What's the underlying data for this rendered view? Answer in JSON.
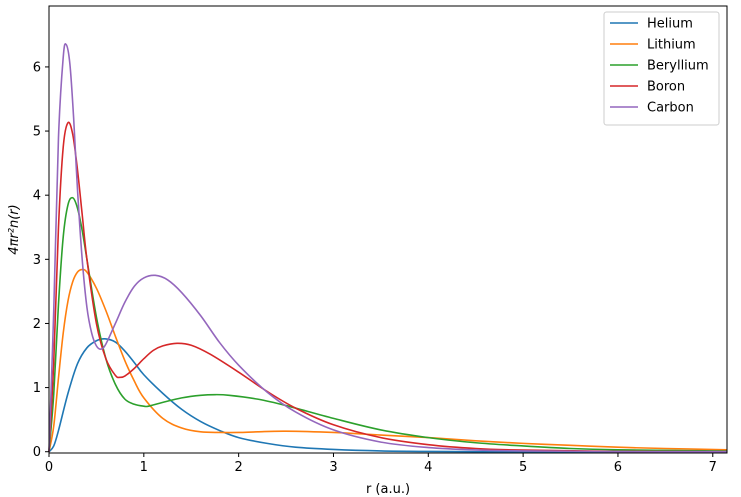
{
  "chart_data": {
    "type": "line",
    "title": "",
    "xlabel": "r (a.u.)",
    "ylabel": "4πr²n(r)",
    "xlim": [
      0,
      7.15
    ],
    "ylim": [
      -0.02,
      6.95
    ],
    "xticks": [
      0,
      1,
      2,
      3,
      4,
      5,
      6,
      7
    ],
    "yticks": [
      0,
      1,
      2,
      3,
      4,
      5,
      6
    ],
    "grid": false,
    "legend_position": "top-right",
    "series": [
      {
        "name": "Helium",
        "color": "#1f77b4",
        "x": [
          0,
          0.05,
          0.1,
          0.2,
          0.3,
          0.4,
          0.5,
          0.59,
          0.7,
          0.8,
          0.9,
          1.0,
          1.2,
          1.4,
          1.6,
          1.8,
          2.0,
          2.3,
          2.6,
          3.0,
          3.5,
          4.0,
          4.5,
          5.0,
          6.0,
          7.15
        ],
        "y": [
          0,
          0.09,
          0.33,
          0.91,
          1.37,
          1.62,
          1.73,
          1.76,
          1.71,
          1.57,
          1.39,
          1.2,
          0.91,
          0.66,
          0.47,
          0.33,
          0.22,
          0.13,
          0.07,
          0.035,
          0.012,
          0.004,
          0.001,
          0,
          0,
          0
        ]
      },
      {
        "name": "Lithium",
        "color": "#ff7f0e",
        "x": [
          0,
          0.05,
          0.1,
          0.15,
          0.2,
          0.25,
          0.3,
          0.35,
          0.4,
          0.5,
          0.6,
          0.7,
          0.8,
          0.9,
          1.0,
          1.2,
          1.4,
          1.6,
          1.8,
          2.0,
          2.2,
          2.5,
          3.0,
          3.5,
          4.0,
          4.5,
          5.0,
          5.5,
          6.0,
          6.5,
          7.15
        ],
        "y": [
          0,
          0.4,
          1.15,
          1.85,
          2.35,
          2.65,
          2.8,
          2.84,
          2.8,
          2.55,
          2.2,
          1.8,
          1.42,
          1.1,
          0.84,
          0.52,
          0.37,
          0.31,
          0.3,
          0.3,
          0.31,
          0.32,
          0.3,
          0.26,
          0.22,
          0.17,
          0.13,
          0.1,
          0.07,
          0.05,
          0.03
        ]
      },
      {
        "name": "Beryllium",
        "color": "#2ca02c",
        "x": [
          0,
          0.05,
          0.1,
          0.15,
          0.2,
          0.25,
          0.3,
          0.35,
          0.4,
          0.5,
          0.6,
          0.7,
          0.8,
          0.9,
          1.0,
          1.05,
          1.2,
          1.4,
          1.6,
          1.75,
          1.9,
          2.2,
          2.5,
          3.0,
          3.5,
          4.0,
          4.5,
          5.0,
          5.5,
          6.0,
          7.15
        ],
        "y": [
          0,
          0.9,
          2.3,
          3.35,
          3.85,
          3.96,
          3.8,
          3.45,
          3.0,
          2.1,
          1.45,
          1.05,
          0.82,
          0.74,
          0.71,
          0.71,
          0.77,
          0.84,
          0.88,
          0.89,
          0.88,
          0.82,
          0.72,
          0.52,
          0.34,
          0.22,
          0.14,
          0.09,
          0.05,
          0.03,
          0.01
        ]
      },
      {
        "name": "Boron",
        "color": "#d62728",
        "x": [
          0,
          0.05,
          0.1,
          0.15,
          0.2,
          0.25,
          0.3,
          0.35,
          0.4,
          0.5,
          0.6,
          0.7,
          0.75,
          0.8,
          0.9,
          1.0,
          1.1,
          1.2,
          1.35,
          1.5,
          1.7,
          2.0,
          2.3,
          2.6,
          3.0,
          3.5,
          4.0,
          4.5,
          5.0,
          6.0,
          7.15
        ],
        "y": [
          0,
          1.4,
          3.5,
          4.75,
          5.13,
          4.95,
          4.4,
          3.7,
          3.0,
          2.0,
          1.45,
          1.19,
          1.16,
          1.18,
          1.3,
          1.45,
          1.58,
          1.65,
          1.69,
          1.66,
          1.52,
          1.24,
          0.94,
          0.68,
          0.42,
          0.22,
          0.11,
          0.05,
          0.025,
          0.005,
          0
        ]
      },
      {
        "name": "Carbon",
        "color": "#9467bd",
        "x": [
          0,
          0.05,
          0.1,
          0.15,
          0.18,
          0.22,
          0.26,
          0.3,
          0.35,
          0.4,
          0.45,
          0.5,
          0.55,
          0.6,
          0.7,
          0.8,
          0.9,
          1.0,
          1.12,
          1.25,
          1.4,
          1.6,
          1.8,
          2.0,
          2.3,
          2.6,
          3.0,
          3.5,
          4.0,
          4.5,
          5.0,
          6.0,
          7.15
        ],
        "y": [
          0,
          2.2,
          4.9,
          6.15,
          6.35,
          6.05,
          5.2,
          4.1,
          3.0,
          2.25,
          1.85,
          1.65,
          1.6,
          1.68,
          2.0,
          2.33,
          2.58,
          2.71,
          2.75,
          2.68,
          2.48,
          2.12,
          1.7,
          1.35,
          0.93,
          0.62,
          0.34,
          0.15,
          0.065,
          0.028,
          0.012,
          0.002,
          0
        ]
      }
    ]
  }
}
